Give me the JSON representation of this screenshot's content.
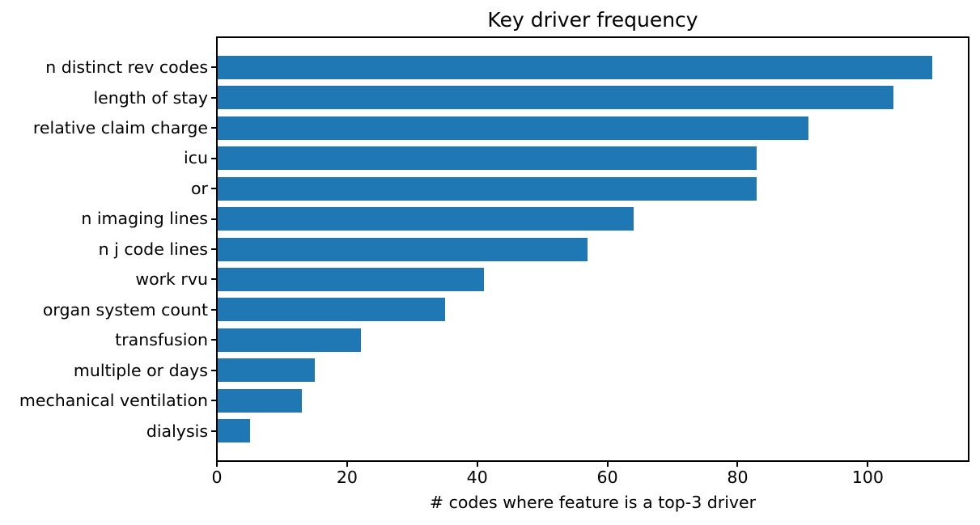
{
  "figure": {
    "title": "Key driver frequency",
    "xlabel": "# codes where feature is a top-3 driver"
  },
  "chart_data": {
    "type": "bar",
    "orientation": "horizontal",
    "title": "Key driver frequency",
    "xlabel": "# codes where feature is a top-3 driver",
    "ylabel": "",
    "categories": [
      "n distinct rev codes",
      "length of stay",
      "relative claim charge",
      "icu",
      "or",
      "n imaging lines",
      "n j code lines",
      "work rvu",
      "organ system count",
      "transfusion",
      "multiple or days",
      "mechanical ventilation",
      "dialysis"
    ],
    "values": [
      110,
      104,
      91,
      83,
      83,
      64,
      57,
      41,
      35,
      22,
      15,
      13,
      5
    ],
    "xticks": [
      0,
      20,
      40,
      60,
      80,
      100
    ],
    "xlim": [
      0,
      115.5
    ],
    "bar_color": "#1f77b4",
    "axis_color": "#000000",
    "grid": false,
    "legend": false
  }
}
